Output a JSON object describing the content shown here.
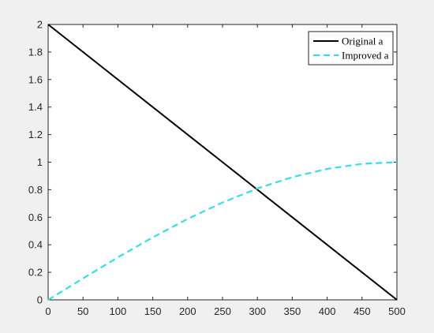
{
  "chart_data": {
    "type": "line",
    "title": "",
    "xlabel": "",
    "ylabel": "",
    "xlim": [
      0,
      500
    ],
    "ylim": [
      0,
      2
    ],
    "xticks": [
      0,
      50,
      100,
      150,
      200,
      250,
      300,
      350,
      400,
      450,
      500
    ],
    "yticks": [
      0,
      0.2,
      0.4,
      0.6,
      0.8,
      1,
      1.2,
      1.4,
      1.6,
      1.8,
      2
    ],
    "xtick_labels": [
      "0",
      "50",
      "100",
      "150",
      "200",
      "250",
      "300",
      "350",
      "400",
      "450",
      "500"
    ],
    "ytick_labels": [
      "0",
      "0.2",
      "0.4",
      "0.6",
      "0.8",
      "1",
      "1.2",
      "1.4",
      "1.6",
      "1.8",
      "2"
    ],
    "grid": false,
    "legend_position": "top-right",
    "series": [
      {
        "name": "Original a",
        "color": "#000000",
        "style": "solid",
        "x": [
          0,
          500
        ],
        "y": [
          2,
          0
        ]
      },
      {
        "name": "Improved a",
        "color": "#33e0e8",
        "style": "dashed",
        "x": [
          0,
          50,
          100,
          150,
          200,
          250,
          300,
          350,
          400,
          450,
          500
        ],
        "y": [
          0,
          0.156,
          0.309,
          0.454,
          0.588,
          0.707,
          0.809,
          0.891,
          0.951,
          0.988,
          1.0
        ]
      }
    ]
  }
}
